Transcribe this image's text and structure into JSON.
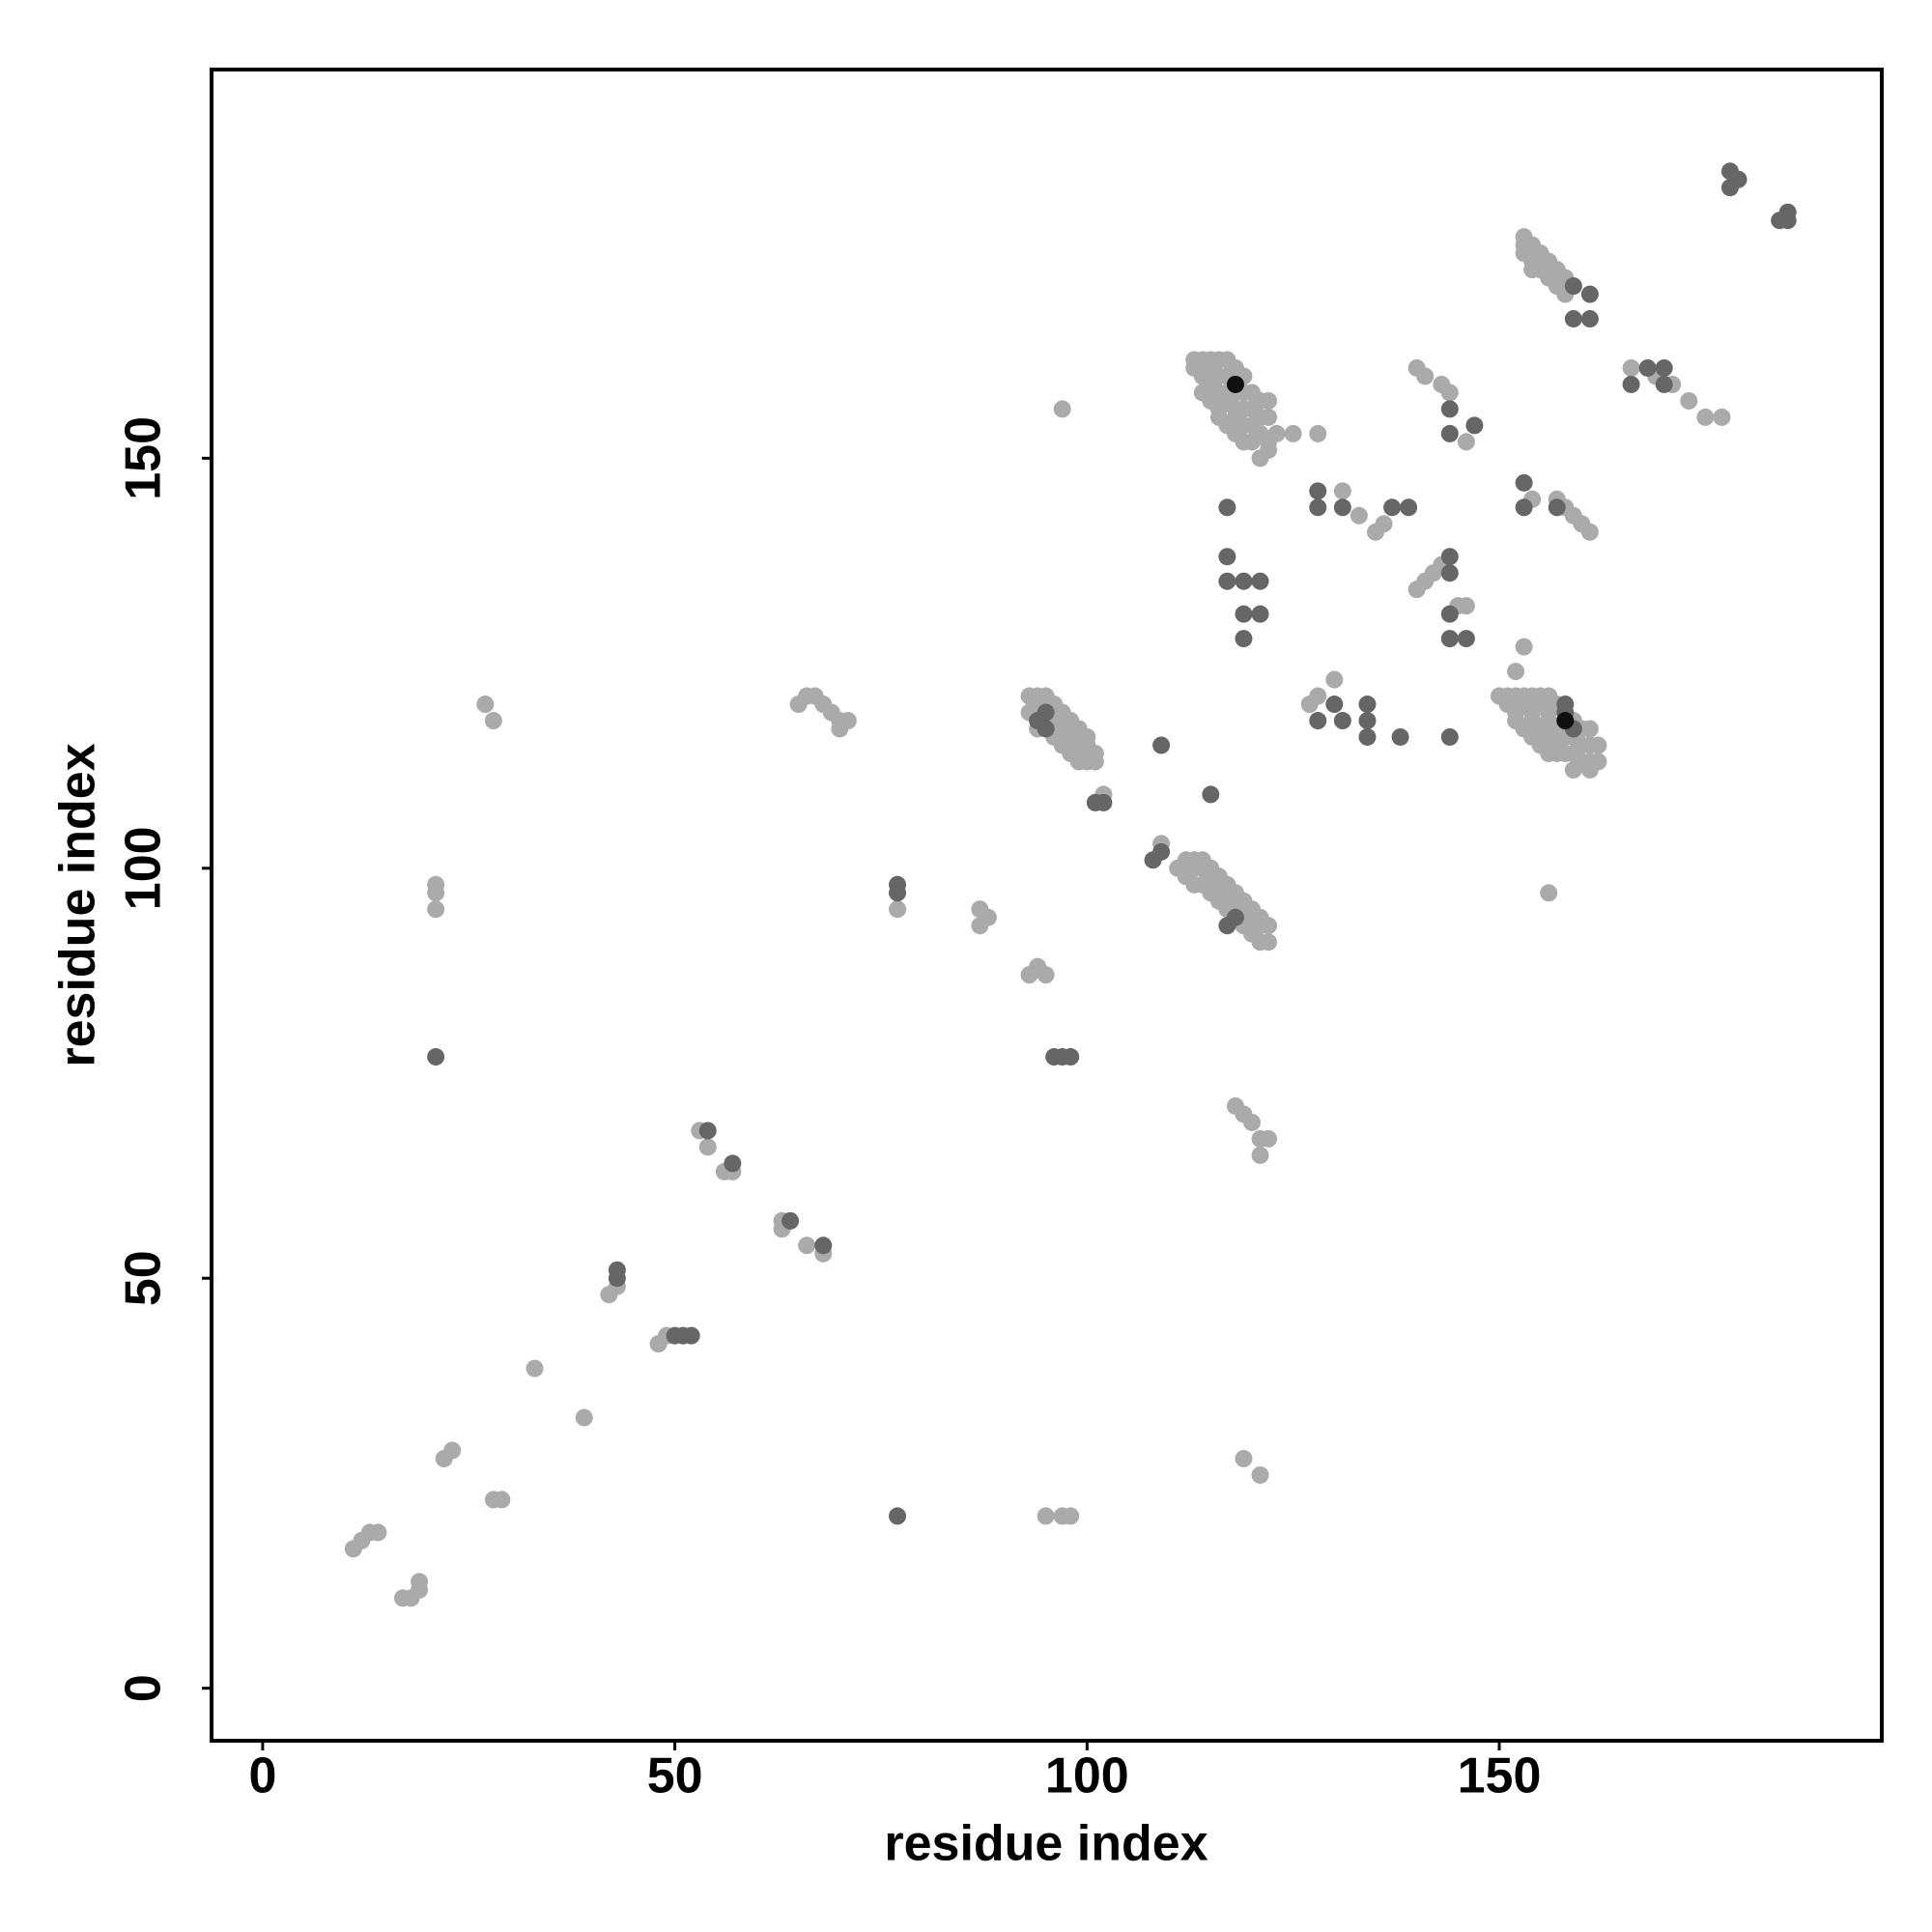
{
  "chart_data": {
    "type": "scatter",
    "x_label": "residue index",
    "y_label": "residue index",
    "xlim": [
      -6.2,
      196.4
    ],
    "ylim": [
      -6.4,
      197.4
    ],
    "xticks": [
      0,
      50,
      100,
      150
    ],
    "yticks": [
      0,
      50,
      100,
      150
    ],
    "grid": false,
    "series": [
      {
        "color": "#aaaaaa",
        "x": [
          11,
          12,
          13,
          14,
          17,
          18,
          19,
          19,
          22,
          23,
          28,
          29,
          21,
          21,
          21,
          27,
          28,
          33,
          39,
          42,
          43,
          48,
          49,
          53,
          54,
          56,
          57,
          63,
          63,
          66,
          68,
          65,
          66,
          67,
          68,
          69,
          70,
          70,
          71,
          77,
          87,
          87,
          88,
          93,
          94,
          95,
          95,
          97,
          98,
          97,
          102,
          109,
          118,
          119,
          120,
          121,
          122,
          121,
          119,
          121,
          125,
          128,
          127,
          128,
          130,
          131,
          133,
          135,
          136,
          140,
          141,
          142,
          143,
          140,
          141,
          143,
          144,
          145,
          146,
          146,
          154,
          152,
          153,
          156,
          157,
          158,
          159,
          160,
          161,
          166,
          169,
          171,
          173,
          175,
          177,
          93,
          94,
          95,
          94,
          95,
          96,
          95,
          96,
          97,
          96,
          97,
          98,
          97,
          98,
          99,
          98,
          99,
          100,
          99,
          100,
          100,
          101,
          101,
          100,
          93,
          94,
          96,
          97,
          98,
          99,
          111,
          112,
          113,
          114,
          113,
          114,
          115,
          115,
          116,
          116,
          117,
          117,
          118,
          118,
          119,
          119,
          120,
          120,
          121,
          121,
          122,
          122,
          121,
          114,
          115,
          116,
          117,
          118,
          119,
          120,
          112,
          113,
          113,
          114,
          115,
          116,
          117,
          113,
          114,
          115,
          116,
          117,
          118,
          119,
          114,
          115,
          116,
          117,
          118,
          119,
          120,
          115,
          116,
          117,
          118,
          119,
          120,
          121,
          122,
          116,
          117,
          118,
          119,
          120,
          121,
          122,
          118,
          119,
          120,
          121,
          122,
          122,
          121,
          123,
          150,
          151,
          152,
          153,
          154,
          155,
          156,
          151,
          152,
          153,
          154,
          155,
          156,
          157,
          152,
          153,
          154,
          155,
          156,
          157,
          158,
          159,
          154,
          155,
          156,
          157,
          158,
          159,
          160,
          161,
          156,
          157,
          158,
          159,
          160,
          161,
          162,
          160,
          161,
          162,
          159,
          161,
          153,
          154,
          153,
          154,
          155,
          155,
          156,
          156,
          157,
          157,
          158,
          158,
          159,
          153,
          155,
          154,
          156
        ],
        "y": [
          17,
          18,
          19,
          19,
          11,
          11,
          12,
          13,
          28,
          29,
          23,
          23,
          98,
          97,
          95,
          120,
          118,
          39,
          33,
          48,
          49,
          42,
          43,
          68,
          66,
          63,
          63,
          57,
          56,
          54,
          53,
          120,
          121,
          121,
          120,
          119,
          118,
          117,
          118,
          95,
          95,
          93,
          94,
          87,
          88,
          87,
          21,
          21,
          21,
          156,
          109,
          103,
          71,
          70,
          69,
          67,
          67,
          65,
          28,
          26,
          153,
          153,
          120,
          121,
          123,
          146,
          143,
          141,
          142,
          134,
          135,
          136,
          137,
          161,
          160,
          159,
          158,
          132,
          132,
          152,
          145,
          124,
          127,
          97,
          145,
          144,
          143,
          142,
          141,
          161,
          160,
          159,
          157,
          155,
          155,
          121,
          121,
          121,
          120,
          120,
          120,
          119,
          119,
          119,
          118,
          118,
          118,
          117,
          117,
          117,
          116,
          116,
          116,
          115,
          115,
          114,
          114,
          113,
          113,
          119,
          117,
          116,
          115,
          114,
          113,
          100,
          101,
          101,
          101,
          100,
          100,
          100,
          99,
          99,
          98,
          98,
          97,
          97,
          96,
          96,
          95,
          95,
          94,
          94,
          93,
          93,
          91,
          91,
          98,
          97,
          96,
          95,
          94,
          93,
          92,
          99,
          98,
          162,
          162,
          162,
          162,
          162,
          161,
          160,
          161,
          160,
          160,
          161,
          160,
          158,
          159,
          158,
          158,
          158,
          158,
          158,
          157,
          156,
          157,
          156,
          156,
          156,
          157,
          157,
          155,
          154,
          155,
          154,
          154,
          155,
          155,
          153,
          152,
          152,
          153,
          152,
          151,
          150,
          153,
          121,
          121,
          121,
          121,
          121,
          121,
          121,
          120,
          119,
          120,
          119,
          120,
          119,
          120,
          118,
          117,
          118,
          117,
          118,
          117,
          118,
          118,
          116,
          115,
          116,
          115,
          116,
          116,
          117,
          117,
          114,
          114,
          114,
          114,
          115,
          115,
          115,
          113,
          113,
          113,
          112,
          112,
          177,
          176,
          175,
          174,
          175,
          173,
          174,
          172,
          173,
          171,
          172,
          170,
          171,
          176,
          174,
          173,
          173
        ]
      },
      {
        "color": "#666666",
        "x": [
          21,
          77,
          43,
          43,
          50,
          51,
          52,
          54,
          57,
          64,
          68,
          77,
          77,
          96,
          97,
          98,
          101,
          102,
          108,
          109,
          109,
          115,
          117,
          117,
          117,
          119,
          119,
          121,
          121,
          119,
          128,
          128,
          131,
          137,
          139,
          128,
          130,
          131,
          134,
          134,
          134,
          138,
          144,
          144,
          147,
          144,
          144,
          144,
          144,
          146,
          144,
          153,
          153,
          157,
          158,
          159,
          158,
          159,
          159,
          161,
          161,
          166,
          168,
          170,
          170,
          178,
          179,
          178,
          184,
          185,
          185,
          118,
          117,
          95,
          94,
          95
        ],
        "y": [
          77,
          21,
          51,
          50,
          43,
          43,
          43,
          68,
          64,
          57,
          54,
          98,
          97,
          77,
          77,
          77,
          108,
          108,
          101,
          102,
          115,
          109,
          144,
          138,
          135,
          131,
          128,
          135,
          131,
          135,
          146,
          144,
          144,
          144,
          144,
          118,
          120,
          118,
          120,
          118,
          116,
          116,
          156,
          153,
          154,
          138,
          136,
          131,
          128,
          128,
          116,
          147,
          144,
          144,
          120,
          117,
          119,
          167,
          171,
          167,
          170,
          159,
          161,
          161,
          159,
          183,
          184,
          185,
          179,
          180,
          179,
          94,
          93,
          119,
          118,
          117
        ]
      },
      {
        "color": "#111111",
        "x": [
          118,
          158
        ],
        "y": [
          159,
          118
        ]
      }
    ]
  }
}
